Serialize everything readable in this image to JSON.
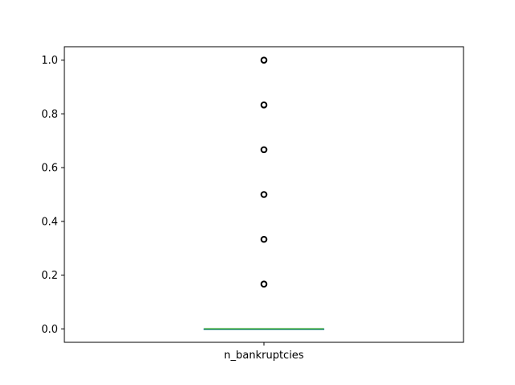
{
  "chart_data": {
    "type": "box",
    "title": "",
    "xlabel": "",
    "ylabel": "",
    "categories": [
      "n_bankruptcies"
    ],
    "ylim": [
      -0.05,
      1.05
    ],
    "yticks": [
      0.0,
      0.2,
      0.4,
      0.6,
      0.8,
      1.0
    ],
    "ytick_labels": [
      "0.0",
      "0.2",
      "0.4",
      "0.6",
      "0.8",
      "1.0"
    ],
    "grid": false,
    "boxes": [
      {
        "category": "n_bankruptcies",
        "q1": 0.0,
        "median": 0.0,
        "q3": 0.0,
        "whisker_low": 0.0,
        "whisker_high": 0.0,
        "outliers": [
          0.1667,
          0.3333,
          0.5,
          0.6667,
          0.8333,
          1.0
        ]
      }
    ],
    "colors": {
      "box": "#1f77b4",
      "median": "#2ca02c",
      "whisker": "#1f77b4",
      "outlier": "#000000",
      "axes": "#000000"
    }
  }
}
